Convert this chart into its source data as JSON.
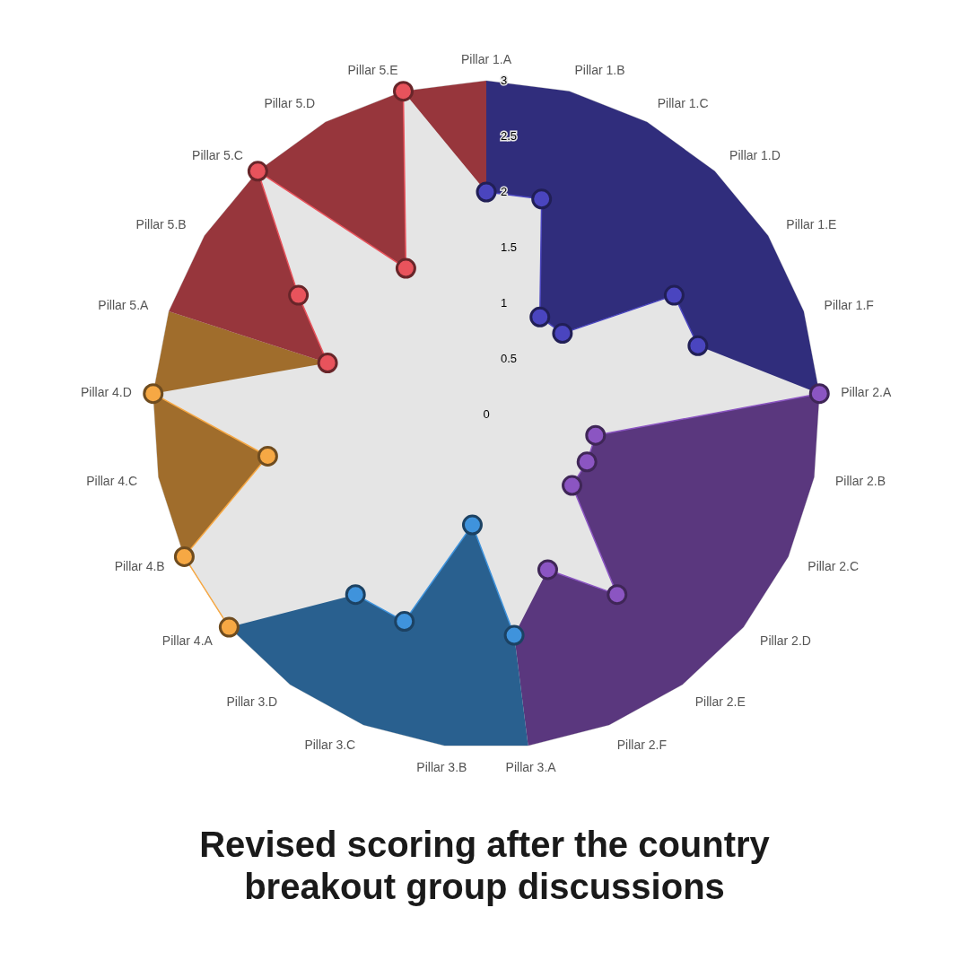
{
  "chart_data": {
    "type": "radar",
    "title": "Revised scoring after the country breakout group discussions",
    "categories": [
      "Pillar 1.A",
      "Pillar 1.B",
      "Pillar 1.C",
      "Pillar 1.D",
      "Pillar 1.E",
      "Pillar 1.F",
      "Pillar 2.A",
      "Pillar 2.B",
      "Pillar 2.C",
      "Pillar 2.D",
      "Pillar 2.E",
      "Pillar 2.F",
      "Pillar 3.A",
      "Pillar 3.B",
      "Pillar 3.C",
      "Pillar 3.D",
      "Pillar 4.A",
      "Pillar 4.B",
      "Pillar 4.C",
      "Pillar 4.D",
      "Pillar 5.A",
      "Pillar 5.B",
      "Pillar 5.C",
      "Pillar 5.D",
      "Pillar 5.E"
    ],
    "series": [
      {
        "color": "#4a45bf",
        "values": [
          2,
          2,
          1,
          1,
          2,
          2,
          null,
          null,
          null,
          null,
          null,
          null,
          null,
          null,
          null,
          null,
          null,
          null,
          null,
          null,
          null,
          null,
          null,
          null,
          null
        ]
      },
      {
        "color": "#8b55c2",
        "values": [
          null,
          null,
          null,
          null,
          null,
          null,
          3,
          1,
          1,
          1,
          2,
          1.5,
          null,
          null,
          null,
          null,
          null,
          null,
          null,
          null,
          null,
          null,
          null,
          null,
          null
        ]
      },
      {
        "color": "#3f93dc",
        "values": [
          null,
          null,
          null,
          null,
          null,
          null,
          null,
          null,
          null,
          null,
          null,
          null,
          2,
          1,
          2,
          2,
          null,
          null,
          null,
          null,
          null,
          null,
          null,
          null,
          null
        ]
      },
      {
        "color": "#f6a844",
        "values": [
          null,
          null,
          null,
          null,
          null,
          null,
          null,
          null,
          null,
          null,
          null,
          null,
          null,
          null,
          null,
          null,
          3,
          3,
          2,
          3,
          null,
          null,
          null,
          null,
          null
        ]
      },
      {
        "color": "#e8535c",
        "values": [
          null,
          null,
          null,
          null,
          null,
          null,
          null,
          null,
          null,
          null,
          null,
          null,
          null,
          null,
          null,
          null,
          null,
          null,
          null,
          null,
          1.5,
          2,
          3,
          1.5,
          3
        ]
      }
    ],
    "ylim": [
      0,
      3
    ],
    "yticks": [
      0,
      0.5,
      1,
      1.5,
      2,
      2.5,
      3
    ],
    "grid": true,
    "marker": "circle"
  }
}
